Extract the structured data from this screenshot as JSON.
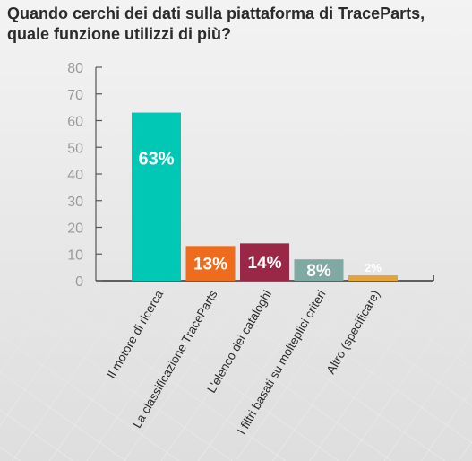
{
  "title": {
    "line1": "Quando cerchi dei dati sulla piattaforma di TraceParts,",
    "line2": "quale funzione utilizzi di più?"
  },
  "chart_data": {
    "type": "bar",
    "title": "Quando cerchi dei dati sulla piattaforma di TraceParts, quale funzione utilizzi di più?",
    "categories": [
      "Il motore di ricerca",
      "La classificazione TraceParts",
      "L'elenco dei cataloghi",
      "I filtri basati su molteplici criteri",
      "Altro (specificare)"
    ],
    "values": [
      63,
      13,
      14,
      8,
      2
    ],
    "data_labels": [
      "63%",
      "13%",
      "14%",
      "8%",
      "2%"
    ],
    "colors": [
      "#00c8b4",
      "#ee6c1d",
      "#9b2747",
      "#7fa9a2",
      "#e4a33b"
    ],
    "label_colors": [
      "#ffffff",
      "#ffffff",
      "#ffffff",
      "#ffffff",
      "#8a8a8a"
    ],
    "yticks": [
      0,
      10,
      20,
      30,
      40,
      50,
      60,
      70,
      80
    ],
    "ylim": [
      0,
      80
    ],
    "xlabel": "",
    "ylabel": "",
    "grid": false,
    "legend": "none"
  }
}
